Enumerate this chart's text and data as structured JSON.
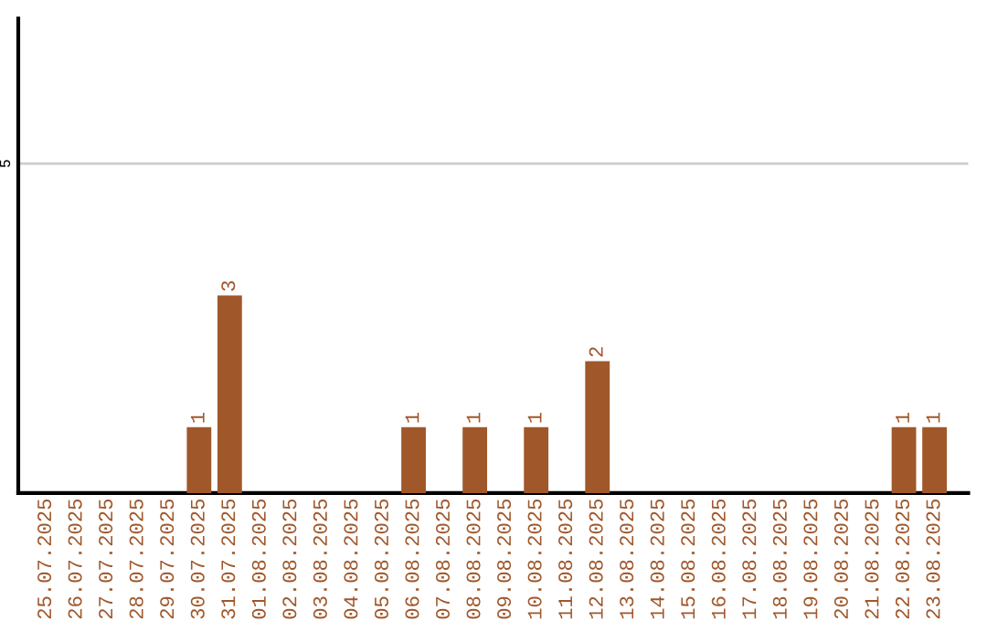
{
  "chart_data": {
    "type": "bar",
    "categories": [
      "25.07.2025",
      "26.07.2025",
      "27.07.2025",
      "28.07.2025",
      "29.07.2025",
      "30.07.2025",
      "31.07.2025",
      "01.08.2025",
      "02.08.2025",
      "03.08.2025",
      "04.08.2025",
      "05.08.2025",
      "06.08.2025",
      "07.08.2025",
      "08.08.2025",
      "09.08.2025",
      "10.08.2025",
      "11.08.2025",
      "12.08.2025",
      "13.08.2025",
      "14.08.2025",
      "15.08.2025",
      "16.08.2025",
      "17.08.2025",
      "18.08.2025",
      "19.08.2025",
      "20.08.2025",
      "21.08.2025",
      "22.08.2025",
      "23.08.2025"
    ],
    "values": [
      null,
      null,
      null,
      null,
      null,
      1,
      3,
      null,
      null,
      null,
      null,
      null,
      1,
      null,
      1,
      null,
      1,
      null,
      2,
      null,
      null,
      null,
      null,
      null,
      null,
      null,
      null,
      null,
      1,
      1
    ],
    "color": "#a0572a",
    "ylim": [
      0,
      7.2
    ],
    "yticks": [
      5
    ],
    "grid": "y",
    "data_labels": true
  }
}
